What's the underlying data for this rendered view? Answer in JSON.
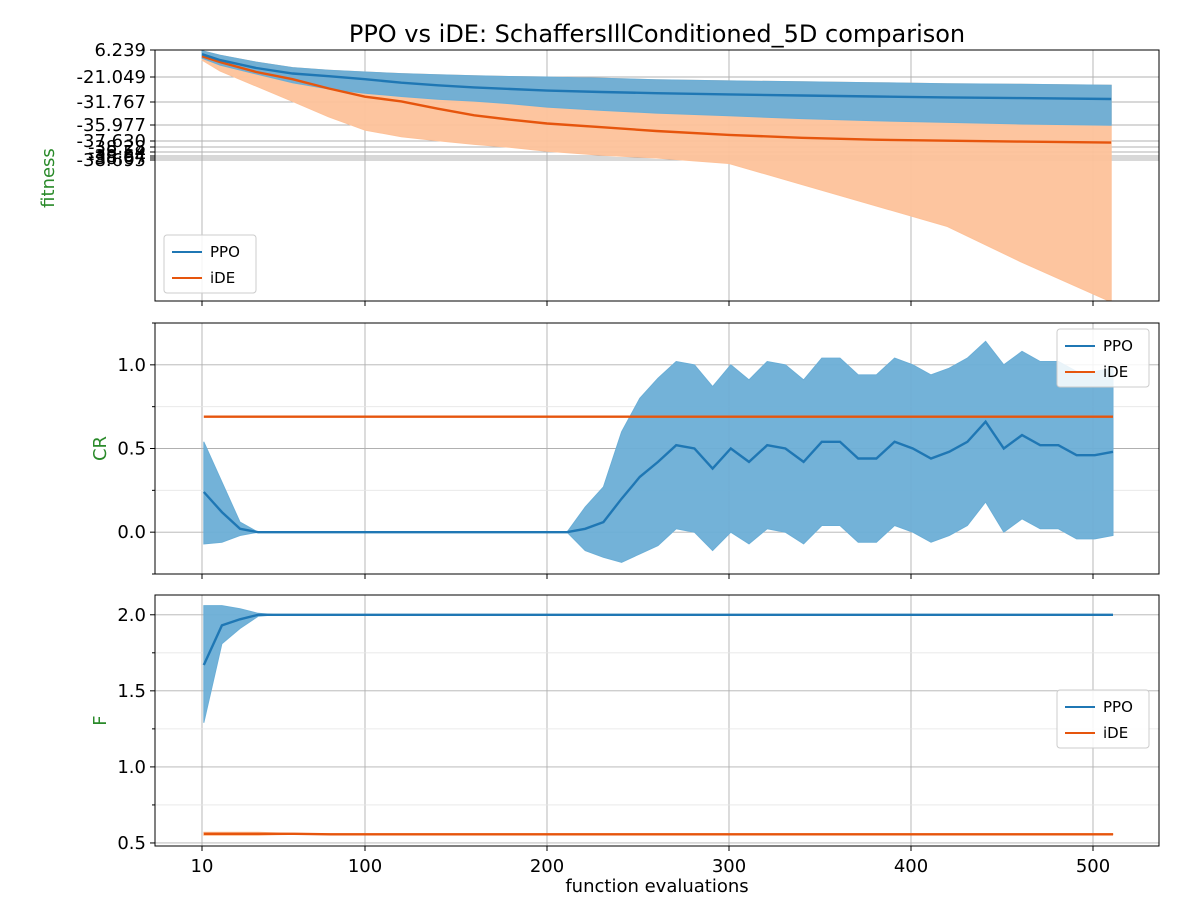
{
  "title": "PPO vs iDE: SchaffersIllConditioned_5D comparison",
  "xlabel": "function evaluations",
  "colors": {
    "ppo": "#1f77b4",
    "ide": "#e6550d",
    "ppo_band": "#6baed6",
    "ide_band": "#fdc29a",
    "ylabel": "#2a8a2a"
  },
  "chart_data": [
    {
      "type": "line",
      "ylabel": "fitness",
      "x_scale": "custom-nonlinear",
      "x_ticks": [
        10,
        100,
        200,
        300,
        400,
        500
      ],
      "y_tick_labels": [
        "6.239",
        "-21.049",
        "-31.767",
        "-35.977",
        "-37.630",
        "-38.28",
        "-38.54",
        "-38.64",
        "-38.67",
        "-38.695"
      ],
      "grid": true,
      "legend": "lower-left",
      "series": [
        {
          "name": "PPO",
          "x": [
            10,
            20,
            40,
            60,
            80,
            100,
            120,
            140,
            160,
            180,
            200,
            230,
            260,
            300,
            340,
            380,
            420,
            460,
            510
          ],
          "mean": [
            2.0,
            -4.0,
            -12.0,
            -17.5,
            -20.2,
            -22.0,
            -23.5,
            -24.6,
            -25.5,
            -26.2,
            -26.9,
            -27.5,
            -28.0,
            -28.5,
            -29.0,
            -29.4,
            -29.8,
            -30.1,
            -30.5
          ],
          "upper": [
            5.5,
            1.0,
            -6.0,
            -11.5,
            -14.2,
            -16.0,
            -17.6,
            -18.8,
            -19.8,
            -20.5,
            -21.0,
            -21.6,
            -22.2,
            -22.7,
            -23.1,
            -23.5,
            -23.9,
            -24.2,
            -24.6
          ],
          "lower": [
            -2.0,
            -9.0,
            -18.0,
            -23.5,
            -26.2,
            -28.0,
            -29.4,
            -30.6,
            -31.4,
            -32.1,
            -32.7,
            -33.3,
            -33.8,
            -34.3,
            -34.8,
            -35.2,
            -35.5,
            -35.8,
            -36.0
          ]
        },
        {
          "name": "iDE",
          "x": [
            10,
            20,
            40,
            60,
            80,
            100,
            120,
            140,
            160,
            180,
            200,
            230,
            260,
            300,
            340,
            380,
            420,
            460,
            510
          ],
          "mean": [
            0.0,
            -6.0,
            -16.0,
            -22.0,
            -26.0,
            -29.5,
            -31.5,
            -33.0,
            -34.2,
            -35.0,
            -35.7,
            -36.2,
            -36.6,
            -37.0,
            -37.3,
            -37.5,
            -37.6,
            -37.7,
            -37.8
          ],
          "upper": [
            5.5,
            1.0,
            -6.0,
            -11.5,
            -14.2,
            -16.0,
            -17.6,
            -18.8,
            -19.8,
            -20.5,
            -21.0,
            -21.6,
            -22.2,
            -22.7,
            -23.1,
            -23.5,
            -23.9,
            -24.2,
            -24.6
          ],
          "lower": [
            -4.0,
            -15.0,
            -25.0,
            -31.5,
            -34.5,
            -36.5,
            -37.2,
            -37.6,
            -38.0,
            -38.3,
            -38.5,
            -38.62,
            -38.67,
            -38.7,
            -38.73,
            -38.76,
            -38.79,
            -38.84,
            -38.9
          ]
        }
      ]
    },
    {
      "type": "line",
      "ylabel": "CR",
      "x_scale": "custom-nonlinear",
      "x_ticks": [
        10,
        100,
        200,
        300,
        400,
        500
      ],
      "ylim": [
        -0.25,
        1.25
      ],
      "y_ticks": [
        0.0,
        0.5,
        1.0
      ],
      "y_tick_labels": [
        "0.0",
        "0.5",
        "1.0"
      ],
      "grid": true,
      "legend": "top-right",
      "series": [
        {
          "name": "PPO",
          "x": [
            11,
            21,
            31,
            41,
            51,
            61,
            71,
            81,
            91,
            101,
            111,
            121,
            131,
            141,
            151,
            161,
            171,
            181,
            191,
            201,
            211,
            221,
            231,
            241,
            251,
            261,
            271,
            281,
            291,
            301,
            311,
            321,
            331,
            341,
            351,
            361,
            371,
            381,
            391,
            401,
            411,
            421,
            431,
            441,
            451,
            461,
            471,
            481,
            491,
            501,
            511
          ],
          "mean": [
            0.24,
            0.12,
            0.02,
            0.0,
            0.0,
            0.0,
            0.0,
            0.0,
            0.0,
            0.0,
            0.0,
            0.0,
            0.0,
            0.0,
            0.0,
            0.0,
            0.0,
            0.0,
            0.0,
            0.0,
            0.0,
            0.02,
            0.06,
            0.2,
            0.33,
            0.42,
            0.52,
            0.5,
            0.38,
            0.5,
            0.42,
            0.52,
            0.5,
            0.42,
            0.54,
            0.54,
            0.44,
            0.44,
            0.54,
            0.5,
            0.44,
            0.48,
            0.54,
            0.66,
            0.5,
            0.58,
            0.52,
            0.52,
            0.46,
            0.46,
            0.48
          ],
          "upper": [
            0.54,
            0.3,
            0.06,
            0.0,
            0.0,
            0.0,
            0.0,
            0.0,
            0.0,
            0.0,
            0.0,
            0.0,
            0.0,
            0.0,
            0.0,
            0.0,
            0.0,
            0.0,
            0.0,
            0.0,
            0.0,
            0.15,
            0.27,
            0.6,
            0.8,
            0.92,
            1.02,
            1.0,
            0.87,
            1.0,
            0.91,
            1.02,
            1.0,
            0.91,
            1.04,
            1.04,
            0.94,
            0.94,
            1.04,
            1.0,
            0.94,
            0.98,
            1.04,
            1.14,
            1.0,
            1.08,
            1.02,
            1.02,
            0.96,
            0.96,
            0.98
          ],
          "lower": [
            -0.07,
            -0.06,
            -0.02,
            0.0,
            0.0,
            0.0,
            0.0,
            0.0,
            0.0,
            0.0,
            0.0,
            0.0,
            0.0,
            0.0,
            0.0,
            0.0,
            0.0,
            0.0,
            0.0,
            0.0,
            0.0,
            -0.11,
            -0.15,
            -0.18,
            -0.13,
            -0.08,
            0.02,
            0.0,
            -0.11,
            0.0,
            -0.07,
            0.02,
            0.0,
            -0.07,
            0.04,
            0.04,
            -0.06,
            -0.06,
            0.04,
            0.0,
            -0.06,
            -0.02,
            0.04,
            0.18,
            0.0,
            0.08,
            0.02,
            0.02,
            -0.04,
            -0.04,
            -0.02
          ]
        },
        {
          "name": "iDE",
          "x": [
            11,
            511
          ],
          "mean": [
            0.69,
            0.69
          ]
        }
      ]
    },
    {
      "type": "line",
      "ylabel": "F",
      "x_scale": "custom-nonlinear",
      "x_ticks": [
        10,
        100,
        200,
        300,
        400,
        500
      ],
      "ylim": [
        0.48,
        2.13
      ],
      "y_ticks": [
        0.5,
        1.0,
        1.5,
        2.0
      ],
      "y_tick_labels": [
        "0.5",
        "1.0",
        "1.5",
        "2.0"
      ],
      "grid": true,
      "legend": "right",
      "series": [
        {
          "name": "PPO",
          "x": [
            11,
            21,
            31,
            41,
            51,
            61,
            511
          ],
          "mean": [
            1.67,
            1.93,
            1.97,
            2.0,
            2.0,
            2.0,
            2.0
          ],
          "upper": [
            2.06,
            2.06,
            2.04,
            2.01,
            2.0,
            2.0,
            2.0
          ],
          "lower": [
            1.29,
            1.81,
            1.91,
            1.99,
            2.0,
            2.0,
            2.0
          ]
        },
        {
          "name": "iDE",
          "x": [
            11,
            21,
            31,
            41,
            51,
            61,
            81,
            511
          ],
          "mean": [
            0.56,
            0.56,
            0.56,
            0.56,
            0.56,
            0.56,
            0.557,
            0.557
          ],
          "upper": [
            0.57,
            0.57,
            0.57,
            0.57,
            0.566,
            0.563,
            0.56,
            0.56
          ],
          "lower": [
            0.55,
            0.55,
            0.55,
            0.55,
            0.554,
            0.556,
            0.555,
            0.555
          ]
        }
      ]
    }
  ]
}
